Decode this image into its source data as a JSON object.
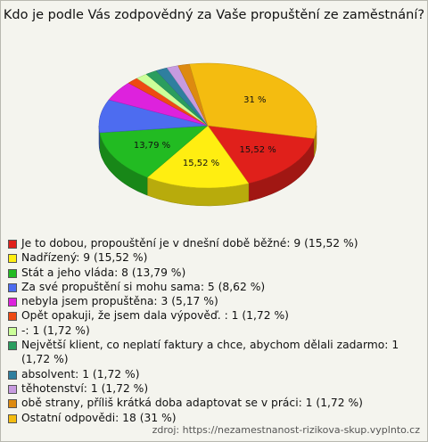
{
  "chart_data": {
    "type": "pie3d",
    "title": "Kdo je podle Vás zodpovědný za Vaše propuštění ze zaměstnání?",
    "source": "zdroj: https://nezamestnanost-rizikova-skup.vyplnto.cz",
    "categories": [
      "Je to dobou, propouštění je v dnešní době běžné: 9 (15,52 %)",
      "Nadřízený: 9 (15,52 %)",
      "Stát a jeho vláda: 8 (13,79 %)",
      "Za své propuštění si mohu sama: 5 (8,62 %)",
      "nebyla jsem propuštěna: 3 (5,17 %)",
      "Opět opakuji, že jsem dala výpověď. : 1 (1,72 %)",
      "-: 1 (1,72 %)",
      "Největší klient, co neplatí faktury a chce, abychom dělali zadarmo: 1 (1,72 %)",
      "absolvent: 1 (1,72 %)",
      "těhotenství: 1 (1,72 %)",
      "obě strany, příliš krátká doba adaptovat se v práci: 1 (1,72 %)",
      "Ostatní odpovědi: 18 (31 %)"
    ],
    "values": [
      15.52,
      15.52,
      13.79,
      8.62,
      5.17,
      1.72,
      1.72,
      1.72,
      1.72,
      1.72,
      1.72,
      31
    ],
    "value_labels": [
      "15,52 %",
      "15,52 %",
      "13,79 %",
      null,
      null,
      null,
      null,
      null,
      null,
      null,
      null,
      "31 %"
    ],
    "colors": [
      "#e0201b",
      "#ffee11",
      "#22bb22",
      "#4d6cf0",
      "#dd22dd",
      "#ee4a12",
      "#ccff99",
      "#2a9d5e",
      "#2f7f9f",
      "#c79be0",
      "#dd8a10",
      "#f4bc10"
    ]
  }
}
